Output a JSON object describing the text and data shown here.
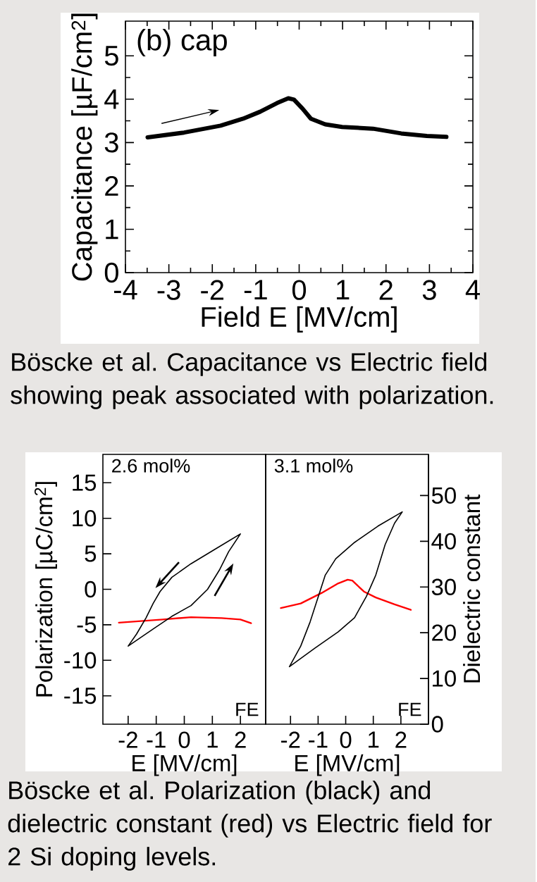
{
  "chart_data": [
    {
      "type": "line",
      "xlabel": "Field E [MV/cm]",
      "ylabel": "Capacitance [µF/cm$^{2}$]",
      "annotations": [
        "(b) cap",
        "Böscke et al. Capacitance vs Electric field showing peak associated with polarization."
      ],
      "x": [
        -3.49,
        -2.65,
        -1.81,
        -1.29,
        -0.9,
        -0.51,
        -0.25,
        -0.12,
        0.08,
        0.27,
        0.6,
        0.99,
        1.7,
        2.35,
        2.94,
        3.39
      ],
      "values": [
        3.12,
        3.23,
        3.39,
        3.55,
        3.71,
        3.91,
        4.02,
        3.99,
        3.78,
        3.55,
        3.42,
        3.36,
        3.32,
        3.21,
        3.15,
        3.13
      ],
      "color": "#000000",
      "xlim": [
        -4,
        4
      ],
      "ylim": [
        0,
        5.8
      ],
      "xticks": [
        -4,
        -3,
        -2,
        -1,
        0,
        1,
        2,
        3,
        4
      ],
      "yticks": [
        0,
        1,
        2,
        3,
        4,
        5
      ]
    },
    {
      "type": "line",
      "xlabel": "E [MV/cm]",
      "ylabel": "Polarization [µC/cm$^{2}$]",
      "annotations": [
        "2.6 mol%",
        "FE"
      ],
      "series": [
        {
          "color": "#ff0000",
          "axis": "y2",
          "x": [
            -2.33,
            -0.77,
            0.24,
            1.33,
            2.0,
            2.38
          ],
          "values": [
            22.2,
            22.9,
            23.4,
            23.2,
            22.9,
            22.1
          ]
        }
      ],
      "xlim": [
        -2.9,
        2.9
      ],
      "ylim": [
        -19,
        19
      ],
      "xticks": [
        -2,
        -1,
        0,
        1,
        2
      ],
      "yticks": [
        -15,
        -10,
        -5,
        0,
        5,
        10,
        15
      ],
      "y2lim": [
        0,
        59
      ]
    },
    {
      "type": "line",
      "xlabel": "E [MV/cm]",
      "y2label": "Dielectric constant",
      "annotations": [
        "3.1 mol%",
        "FE",
        "Böscke et al. Polarization (black) and dielectric constant (red) vs Electric field for 2 Si doping levels."
      ],
      "series": [
        {
          "color": "#ff0000",
          "axis": "y2",
          "x": [
            -2.35,
            -1.63,
            -0.87,
            -0.27,
            0.07,
            0.24,
            0.66,
            1.09,
            1.77,
            2.36
          ],
          "values": [
            25.4,
            26.4,
            28.7,
            30.8,
            31.6,
            31.4,
            29.0,
            27.7,
            26.2,
            25.0
          ]
        }
      ],
      "xlim": [
        -2.9,
        3.0
      ],
      "ylim": [
        -19,
        19
      ],
      "xticks": [
        -2,
        -1,
        0,
        1,
        2
      ],
      "y2lim": [
        0,
        59
      ],
      "y2ticks": [
        0,
        10,
        20,
        30,
        40,
        50
      ]
    }
  ]
}
